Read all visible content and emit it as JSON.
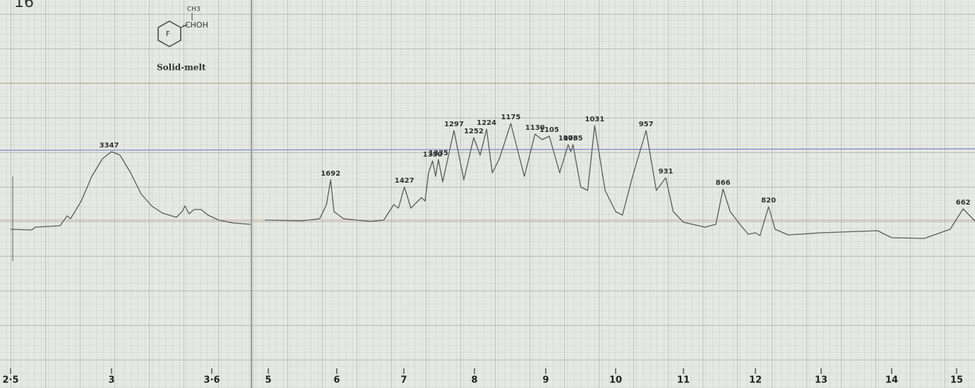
{
  "chart_data": {
    "type": "line",
    "figure_number": "16",
    "structure_labels": [
      "CH3",
      "-CHOH",
      "F"
    ],
    "sample_note": "Solid-melt",
    "xlim": [
      2.5,
      15.3
    ],
    "ylim": [
      0,
      100
    ],
    "xticks": [
      {
        "value": 2.5,
        "label": "2·5"
      },
      3,
      {
        "value": 3.6,
        "label": "3·6"
      },
      5,
      6,
      7,
      8,
      9,
      10,
      11,
      12,
      13,
      14,
      15
    ],
    "series": [
      {
        "color": "#5a5a5a",
        "x": [
          2.5,
          2.605,
          2.622,
          2.745,
          2.78,
          2.797,
          2.85,
          2.902,
          2.955,
          3.0,
          3.051,
          3.114,
          3.177,
          3.241,
          3.304,
          3.388,
          3.422,
          3.439,
          3.464,
          3.494,
          3.536,
          3.578,
          3.641,
          3.726,
          3.831
        ],
        "values": [
          39,
          38.8,
          39.6,
          40,
          42.8,
          42,
          47,
          54,
          59,
          61,
          60,
          55,
          49,
          45.6,
          43.6,
          42.4,
          44,
          45.6,
          43.4,
          44.6,
          44.6,
          43,
          41.6,
          40.8,
          40.4
        ]
      },
      {
        "color": "#5a5a5a",
        "x": [
          4.95,
          5.5,
          5.75,
          5.85,
          5.91,
          5.96,
          6.1,
          6.5,
          6.7,
          6.85,
          6.92,
          7.008,
          7.1,
          7.25,
          7.3,
          7.35,
          7.407,
          7.45,
          7.49,
          7.55,
          7.71,
          7.85,
          7.99,
          8.08,
          8.17,
          8.25,
          8.35,
          8.51,
          8.7,
          8.85,
          8.95,
          9.05,
          9.2,
          9.32,
          9.36,
          9.39,
          9.5,
          9.6,
          9.7,
          9.85,
          10.0,
          10.1,
          10.25,
          10.45,
          10.6,
          10.74,
          10.85,
          11.0,
          11.3,
          11.45,
          11.55,
          11.65,
          11.8,
          11.9,
          12.0,
          12.07,
          12.2,
          12.3,
          12.5,
          13.0,
          13.8,
          14.0,
          14.5,
          14.9,
          15.1,
          15.3
        ],
        "values": [
          41.6,
          41.4,
          42,
          46,
          53,
          44,
          42,
          41.2,
          41.6,
          46,
          45,
          51,
          45,
          48,
          47,
          55,
          58.4,
          54,
          58.8,
          52.4,
          67,
          53,
          65,
          60,
          67.4,
          55,
          59,
          69,
          54,
          66,
          64.4,
          65.4,
          55,
          63,
          61,
          63,
          51,
          50,
          68.4,
          50,
          44,
          43,
          54,
          67,
          50,
          53.6,
          44,
          41,
          39.6,
          40.4,
          50.4,
          44,
          40,
          37.6,
          38,
          37.2,
          45.4,
          39,
          37.4,
          38,
          38.6,
          36.6,
          36.4,
          39,
          44.8,
          41
        ]
      }
    ],
    "annotations": [
      {
        "text": "3347",
        "x": 2.988,
        "y": 61
      },
      {
        "text": "1692",
        "x": 5.91,
        "y": 53
      },
      {
        "text": "1427",
        "x": 7.008,
        "y": 51
      },
      {
        "text": "1350",
        "x": 7.407,
        "y": 58.4
      },
      {
        "text": "1335",
        "x": 7.49,
        "y": 58.8
      },
      {
        "text": "1297",
        "x": 7.71,
        "y": 67
      },
      {
        "text": "1252",
        "x": 7.99,
        "y": 65
      },
      {
        "text": "1224",
        "x": 8.17,
        "y": 67.4
      },
      {
        "text": "1175",
        "x": 8.51,
        "y": 69
      },
      {
        "text": "1130",
        "x": 8.85,
        "y": 66
      },
      {
        "text": "1105",
        "x": 9.05,
        "y": 65.4
      },
      {
        "text": "1073",
        "x": 9.32,
        "y": 63
      },
      {
        "text": "1065",
        "x": 9.39,
        "y": 63
      },
      {
        "text": "1031",
        "x": 9.7,
        "y": 68.4
      },
      {
        "text": "957",
        "x": 10.45,
        "y": 67
      },
      {
        "text": "931",
        "x": 10.74,
        "y": 53.6
      },
      {
        "text": "866",
        "x": 11.55,
        "y": 50.4
      },
      {
        "text": "820",
        "x": 12.2,
        "y": 45.4
      },
      {
        "text": "662",
        "x": 15.1,
        "y": 44.8
      }
    ]
  }
}
